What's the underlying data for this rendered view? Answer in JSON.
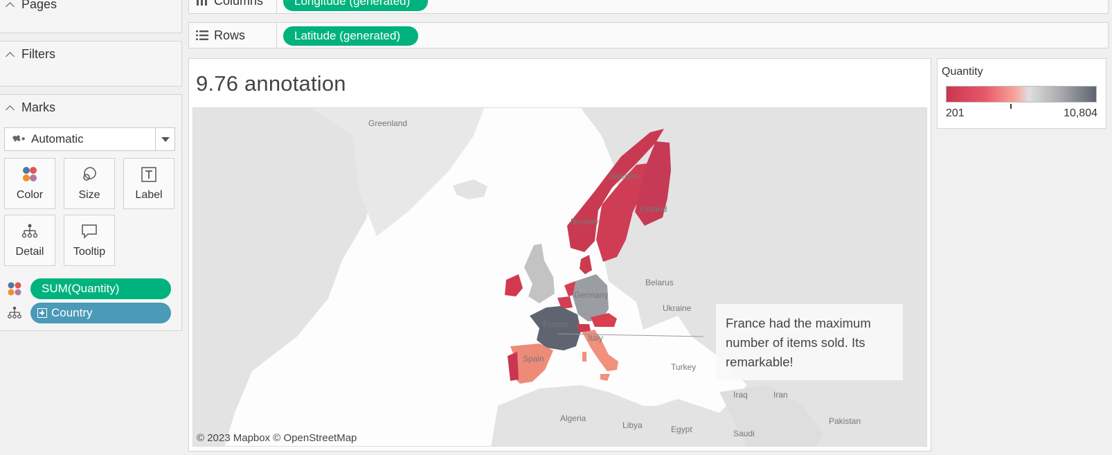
{
  "left_panel": {
    "pages_label": "Pages",
    "filters_label": "Filters",
    "marks_label": "Marks",
    "mark_type": "Automatic",
    "buttons": {
      "color": "Color",
      "size": "Size",
      "label": "Label",
      "detail": "Detail",
      "tooltip": "Tooltip"
    },
    "pills": {
      "color_field": "SUM(Quantity)",
      "detail_field": "Country"
    }
  },
  "shelves": {
    "columns_label": "Columns",
    "columns_pill": "Longitude (generated)",
    "rows_label": "Rows",
    "rows_pill": "Latitude (generated)"
  },
  "view": {
    "title": "9.76 annotation",
    "attribution": "© 2023 Mapbox  © OpenStreetMap",
    "annotation": "France had the maximum number of items sold. Its remarkable!",
    "map_labels": {
      "greenland": "Greenland",
      "sweden": "Sweden",
      "norway": "Norway",
      "finland": "Finland",
      "belarus": "Belarus",
      "ukraine": "Ukraine",
      "germany": "Germany",
      "france": "France",
      "italy": "Italy",
      "spain": "Spain",
      "turkey": "Turkey",
      "iraq": "Iraq",
      "iran": "Iran",
      "algeria": "Algeria",
      "libya": "Libya",
      "egypt": "Egypt",
      "saudi": "Saudi",
      "pakistan": "Pakistan"
    }
  },
  "legend": {
    "title": "Quantity",
    "min": "201",
    "max": "10,804",
    "colors": [
      "#c9364f",
      "#e8566a",
      "#f7a59a",
      "#dedede",
      "#a9abae",
      "#5e6370"
    ]
  },
  "country_colors": {
    "france": "#5f6470",
    "germany": "#9a9da1",
    "united_kingdom": "#c3c3c3",
    "spain": "#ee8a78",
    "italy": "#f0907d",
    "portugal": "#c9364f",
    "ireland": "#d2384e",
    "norway": "#c93a52",
    "sweden": "#cf3d55",
    "finland": "#c63a55",
    "denmark": "#cc3a50",
    "netherlands": "#d23e54",
    "belgium": "#d23e54",
    "austria": "#d8404f",
    "switzerland": "#cc3a50"
  }
}
